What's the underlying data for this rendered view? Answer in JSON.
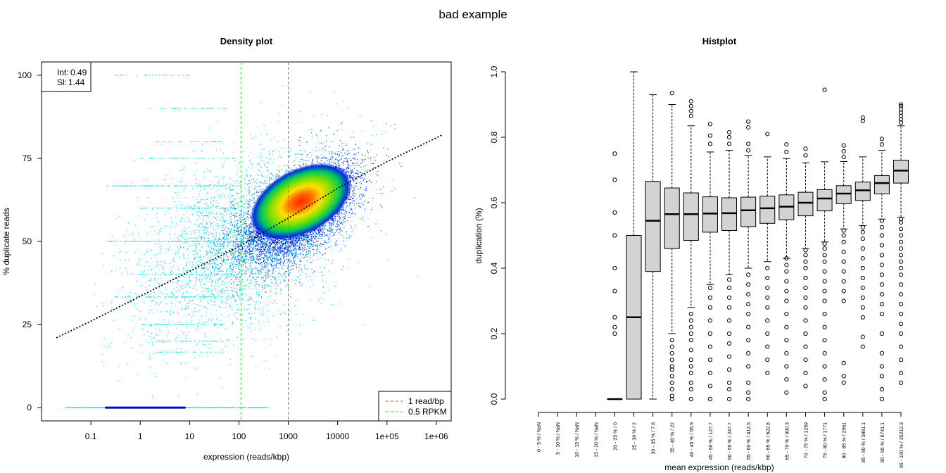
{
  "figure": {
    "title": "bad example"
  },
  "chart_data": [
    {
      "type": "scatter",
      "title": "Density plot",
      "xlabel": "expression (reads/kbp)",
      "ylabel": "% duplicate reads",
      "x_scale": "log10",
      "xlim": [
        0.01,
        2000000
      ],
      "ylim": [
        -4,
        104
      ],
      "x_ticks": [
        0.1,
        1,
        10,
        100,
        1000,
        10000,
        100000,
        1000000
      ],
      "x_tick_labels": [
        "0.1",
        "1",
        "10",
        "100",
        "1000",
        "10000",
        "1e+05",
        "1e+06"
      ],
      "y_ticks": [
        0,
        25,
        50,
        75,
        100
      ],
      "y_tick_labels": [
        "0",
        "25",
        "50",
        "75",
        "100"
      ],
      "density_center": {
        "x": 1800,
        "y": 62
      },
      "fit_line": {
        "style": "dotted",
        "color": "#000000",
        "points": [
          [
            0.02,
            21
          ],
          [
            0.1,
            26
          ],
          [
            1,
            33.5
          ],
          [
            10,
            41
          ],
          [
            100,
            48.5
          ],
          [
            1000,
            57
          ],
          [
            10000,
            66
          ],
          [
            100000,
            74
          ],
          [
            1300000,
            82
          ]
        ]
      },
      "vlines": [
        {
          "x": 1000,
          "color": "#ff4040",
          "label": "1 read/bp",
          "style": "dashed"
        },
        {
          "x": 110,
          "color": "#40e040",
          "label": "0.5 RPKM",
          "style": "dashed"
        }
      ],
      "stats": [
        {
          "label": "Int:",
          "value": "0.49"
        },
        {
          "label": "Sl:",
          "value": "1.44"
        }
      ],
      "legend_position": "bottom-right",
      "colors": {
        "low_density": "#00e5ee",
        "mid_low": "#1060ff",
        "dense_edge": "#0000c8",
        "mid": "#00d060",
        "high": "#ffe000",
        "peak": "#ff2000"
      }
    },
    {
      "type": "box",
      "title": "Histplot",
      "xlabel": "mean expression (reads/kbp)",
      "ylabel": "duplication (%)",
      "ylim": [
        0,
        1
      ],
      "y_ticks": [
        0.0,
        0.2,
        0.4,
        0.6,
        0.8,
        1.0
      ],
      "y_tick_labels": [
        "0.0",
        "0.2",
        "0.4",
        "0.6",
        "0.8",
        "1.0"
      ],
      "categories": [
        "0 - 5 % / NaN",
        "5 - 10 % / NaN",
        "10 - 15 % / NaN",
        "15 - 20 % / NaN",
        "20 - 25 % / 0",
        "25 - 30 % / 2",
        "30 - 35 % / 7.8",
        "35 - 40 % / 22",
        "40 - 45 % / 55.9",
        "45 - 50 % / 127.7",
        "50 - 55 % / 247.7",
        "55 - 60 % / 412.5",
        "60 - 65 % / 622.8",
        "65 - 70 % / 900.3",
        "70 - 75 % / 1259",
        "75 - 80 % / 1771",
        "80 - 85 % / 2561",
        "85 - 90 % / 3881.1",
        "90 - 95 % / 6741.1",
        "95 - 100 % / 35212.3"
      ],
      "boxes": [
        null,
        null,
        null,
        null,
        {
          "whislo": 0,
          "q1": 0,
          "med": 0,
          "q3": 0,
          "whishi": 0,
          "fliers": [
            0.2,
            0.22,
            0.25,
            0.33,
            0.4,
            0.5,
            0.57,
            0.67,
            0.75
          ]
        },
        {
          "whislo": 0,
          "q1": 0,
          "med": 0.25,
          "q3": 0.5,
          "whishi": 1.0,
          "fliers": []
        },
        {
          "whislo": 0,
          "q1": 0.39,
          "med": 0.545,
          "q3": 0.665,
          "whishi": 0.93,
          "fliers": []
        },
        {
          "whislo": 0.2,
          "q1": 0.46,
          "med": 0.565,
          "q3": 0.645,
          "whishi": 0.9,
          "fliers": [
            0.0,
            0.01,
            0.03,
            0.05,
            0.07,
            0.09,
            0.1,
            0.12,
            0.14,
            0.16,
            0.18,
            0.935
          ]
        },
        {
          "whislo": 0.28,
          "q1": 0.485,
          "med": 0.565,
          "q3": 0.63,
          "whishi": 0.835,
          "fliers": [
            0.0,
            0.03,
            0.05,
            0.08,
            0.1,
            0.12,
            0.15,
            0.18,
            0.2,
            0.22,
            0.24,
            0.26,
            0.865,
            0.88,
            0.895,
            0.91
          ]
        },
        {
          "whislo": 0.35,
          "q1": 0.51,
          "med": 0.567,
          "q3": 0.618,
          "whishi": 0.755,
          "fliers": [
            0.0,
            0.04,
            0.08,
            0.12,
            0.16,
            0.2,
            0.24,
            0.28,
            0.31,
            0.34,
            0.78,
            0.805,
            0.84
          ]
        },
        {
          "whislo": 0.38,
          "q1": 0.515,
          "med": 0.568,
          "q3": 0.615,
          "whishi": 0.76,
          "fliers": [
            0.0,
            0.03,
            0.05,
            0.09,
            0.13,
            0.17,
            0.2,
            0.24,
            0.28,
            0.31,
            0.34,
            0.365,
            0.78,
            0.8,
            0.815
          ]
        },
        {
          "whislo": 0.4,
          "q1": 0.527,
          "med": 0.577,
          "q3": 0.617,
          "whishi": 0.745,
          "fliers": [
            0.0,
            0.02,
            0.05,
            0.1,
            0.14,
            0.18,
            0.22,
            0.26,
            0.29,
            0.32,
            0.35,
            0.38,
            0.76,
            0.78,
            0.83,
            0.848
          ]
        },
        {
          "whislo": 0.42,
          "q1": 0.537,
          "med": 0.583,
          "q3": 0.62,
          "whishi": 0.74,
          "fliers": [
            0.08,
            0.12,
            0.16,
            0.2,
            0.24,
            0.28,
            0.31,
            0.34,
            0.37,
            0.4,
            0.81
          ]
        },
        {
          "whislo": 0.43,
          "q1": 0.548,
          "med": 0.588,
          "q3": 0.624,
          "whishi": 0.735,
          "fliers": [
            0.02,
            0.06,
            0.1,
            0.14,
            0.18,
            0.22,
            0.26,
            0.3,
            0.33,
            0.36,
            0.39,
            0.41,
            0.43,
            0.755,
            0.778
          ]
        },
        {
          "whislo": 0.46,
          "q1": 0.56,
          "med": 0.6,
          "q3": 0.632,
          "whishi": 0.722,
          "fliers": [
            0.04,
            0.08,
            0.12,
            0.16,
            0.2,
            0.24,
            0.28,
            0.31,
            0.34,
            0.37,
            0.4,
            0.42,
            0.44,
            0.455,
            0.745,
            0.765
          ]
        },
        {
          "whislo": 0.48,
          "q1": 0.575,
          "med": 0.613,
          "q3": 0.64,
          "whishi": 0.725,
          "fliers": [
            0.0,
            0.02,
            0.06,
            0.1,
            0.14,
            0.18,
            0.22,
            0.26,
            0.3,
            0.33,
            0.36,
            0.39,
            0.42,
            0.44,
            0.46,
            0.475,
            0.945
          ]
        },
        {
          "whislo": 0.52,
          "q1": 0.597,
          "med": 0.628,
          "q3": 0.652,
          "whishi": 0.726,
          "fliers": [
            0.05,
            0.07,
            0.11,
            0.3,
            0.33,
            0.36,
            0.39,
            0.42,
            0.45,
            0.48,
            0.5,
            0.515,
            0.74,
            0.757,
            0.775
          ]
        },
        {
          "whislo": 0.53,
          "q1": 0.607,
          "med": 0.638,
          "q3": 0.663,
          "whishi": 0.74,
          "fliers": [
            0.16,
            0.19,
            0.25,
            0.28,
            0.31,
            0.34,
            0.37,
            0.4,
            0.43,
            0.46,
            0.49,
            0.51,
            0.525,
            0.85,
            0.86
          ]
        },
        {
          "whislo": 0.55,
          "q1": 0.627,
          "med": 0.66,
          "q3": 0.683,
          "whishi": 0.76,
          "fliers": [
            0.0,
            0.03,
            0.07,
            0.1,
            0.14,
            0.2,
            0.26,
            0.29,
            0.32,
            0.35,
            0.38,
            0.41,
            0.44,
            0.47,
            0.5,
            0.525,
            0.545,
            0.778,
            0.795
          ]
        },
        {
          "whislo": 0.555,
          "q1": 0.66,
          "med": 0.698,
          "q3": 0.73,
          "whishi": 0.835,
          "fliers": [
            0.05,
            0.08,
            0.12,
            0.16,
            0.2,
            0.23,
            0.26,
            0.29,
            0.32,
            0.35,
            0.38,
            0.4,
            0.42,
            0.44,
            0.46,
            0.48,
            0.5,
            0.52,
            0.54,
            0.55,
            0.845,
            0.855,
            0.865,
            0.875,
            0.885,
            0.895,
            0.9
          ]
        }
      ],
      "colors": {
        "box_fill": "#d3d3d3",
        "line": "#000000"
      }
    }
  ]
}
